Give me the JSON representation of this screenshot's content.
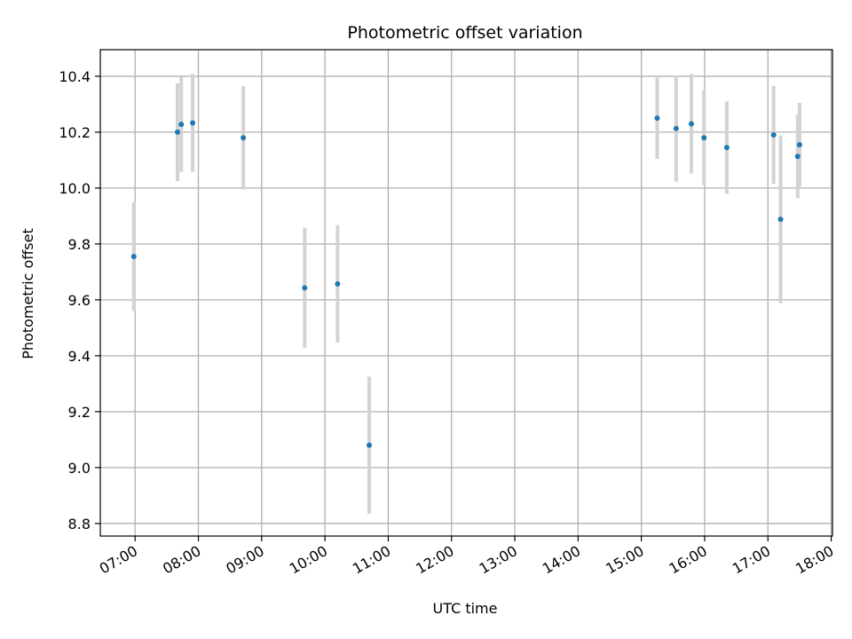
{
  "chart_data": {
    "type": "scatter",
    "title": "Photometric offset variation",
    "xlabel": "UTC time",
    "ylabel": "Photometric offset",
    "grid": true,
    "x_unit": "hours UTC",
    "xlim": [
      6.45,
      18.02
    ],
    "ylim": [
      8.755,
      10.495
    ],
    "xticks": [
      {
        "value": 7,
        "label": "07:00"
      },
      {
        "value": 8,
        "label": "08:00"
      },
      {
        "value": 9,
        "label": "09:00"
      },
      {
        "value": 10,
        "label": "10:00"
      },
      {
        "value": 11,
        "label": "11:00"
      },
      {
        "value": 12,
        "label": "12:00"
      },
      {
        "value": 13,
        "label": "13:00"
      },
      {
        "value": 14,
        "label": "14:00"
      },
      {
        "value": 15,
        "label": "15:00"
      },
      {
        "value": 16,
        "label": "16:00"
      },
      {
        "value": 17,
        "label": "17:00"
      },
      {
        "value": 18,
        "label": "18:00"
      }
    ],
    "yticks": [
      {
        "value": 8.8,
        "label": "8.8"
      },
      {
        "value": 9.0,
        "label": "9.0"
      },
      {
        "value": 9.2,
        "label": "9.2"
      },
      {
        "value": 9.4,
        "label": "9.4"
      },
      {
        "value": 9.6,
        "label": "9.6"
      },
      {
        "value": 9.8,
        "label": "9.8"
      },
      {
        "value": 10.0,
        "label": "10.0"
      },
      {
        "value": 10.2,
        "label": "10.2"
      },
      {
        "value": 10.4,
        "label": "10.4"
      }
    ],
    "points": [
      {
        "x": 6.98,
        "y": 9.755,
        "err": 0.195
      },
      {
        "x": 7.67,
        "y": 10.2,
        "err": 0.175
      },
      {
        "x": 7.73,
        "y": 10.228,
        "err": 0.17
      },
      {
        "x": 7.91,
        "y": 10.233,
        "err": 0.175
      },
      {
        "x": 8.71,
        "y": 10.18,
        "err": 0.185
      },
      {
        "x": 9.68,
        "y": 9.643,
        "err": 0.215
      },
      {
        "x": 10.2,
        "y": 9.657,
        "err": 0.21
      },
      {
        "x": 10.7,
        "y": 9.08,
        "err": 0.245
      },
      {
        "x": 15.25,
        "y": 10.25,
        "err": 0.145
      },
      {
        "x": 15.55,
        "y": 10.213,
        "err": 0.19
      },
      {
        "x": 15.79,
        "y": 10.23,
        "err": 0.178
      },
      {
        "x": 15.99,
        "y": 10.18,
        "err": 0.17
      },
      {
        "x": 16.35,
        "y": 10.145,
        "err": 0.165
      },
      {
        "x": 17.09,
        "y": 10.19,
        "err": 0.175
      },
      {
        "x": 17.2,
        "y": 9.888,
        "err": 0.3
      },
      {
        "x": 17.47,
        "y": 10.113,
        "err": 0.15
      },
      {
        "x": 17.5,
        "y": 10.155,
        "err": 0.15
      }
    ],
    "colors": {
      "point": "#1f77b4",
      "errorbar": "#d3d3d3",
      "grid": "#b0b0b0",
      "axes": "#000000"
    }
  }
}
